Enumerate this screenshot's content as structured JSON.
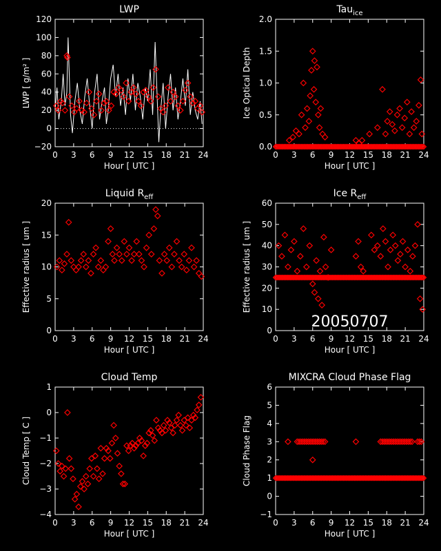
{
  "figure": {
    "background": "#000000",
    "foreground": "#ffffff",
    "marker_color": "#ff0000",
    "date_label": "20050707"
  },
  "chart_data": [
    {
      "type": "scatter",
      "title": "LWP",
      "xlabel": "Hour [ UTC ]",
      "ylabel": "LWP [ g/m² ]",
      "xlim": [
        0,
        24
      ],
      "ylim": [
        -20,
        120
      ],
      "xticks": [
        "0",
        "3",
        "6",
        "9",
        "12",
        "15",
        "18",
        "21",
        "24"
      ],
      "yticks": [
        "−20",
        "0",
        "20",
        "40",
        "60",
        "80",
        "100",
        "120"
      ],
      "zero_line": true,
      "series": [
        {
          "style": "white-line",
          "x": [
            0,
            0.3,
            0.6,
            1,
            1.3,
            1.6,
            1.9,
            2.1,
            2.5,
            2.8,
            3.2,
            3.6,
            4,
            4.4,
            4.8,
            5.2,
            5.6,
            6,
            6.4,
            6.8,
            7.2,
            7.6,
            8,
            8.3,
            8.6,
            9,
            9.4,
            9.8,
            10.2,
            10.6,
            11,
            11.4,
            11.8,
            12.2,
            12.6,
            13,
            13.4,
            13.8,
            14.2,
            14.6,
            15,
            15.4,
            15.8,
            16.2,
            16.5,
            16.8,
            17.1,
            17.5,
            17.9,
            18.3,
            18.7,
            19.1,
            19.5,
            19.9,
            20.3,
            20.7,
            21.1,
            21.5,
            21.9,
            22.3,
            22.7,
            23.1,
            23.5,
            23.8
          ],
          "y": [
            20,
            45,
            10,
            30,
            60,
            25,
            40,
            100,
            15,
            -5,
            30,
            50,
            20,
            5,
            35,
            55,
            25,
            0,
            40,
            60,
            10,
            30,
            45,
            5,
            20,
            55,
            70,
            35,
            60,
            25,
            45,
            15,
            55,
            30,
            60,
            20,
            50,
            35,
            10,
            45,
            30,
            65,
            15,
            95,
            40,
            -15,
            20,
            50,
            0,
            35,
            60,
            20,
            45,
            10,
            30,
            55,
            25,
            65,
            15,
            40,
            20,
            10,
            30,
            5
          ]
        },
        {
          "style": "red-diamond",
          "x": [
            0.2,
            0.5,
            0.9,
            1.2,
            1.6,
            1.9,
            2,
            2.3,
            2.7,
            3.1,
            3.5,
            3.9,
            4.3,
            4.7,
            5.1,
            5.5,
            5.9,
            6.3,
            6.7,
            7.1,
            7.5,
            7.9,
            8.3,
            8.7,
            9.1,
            9.5,
            9.9,
            10.3,
            10.7,
            11.1,
            11.5,
            11.9,
            12.3,
            12.7,
            13.1,
            13.5,
            13.9,
            14.3,
            14.7,
            15.1,
            15.5,
            15.9,
            16.3,
            16.7,
            17.1,
            17.5,
            17.9,
            18.3,
            18.7,
            19.1,
            19.5,
            19.9,
            20.3,
            20.7,
            21.1,
            21.5,
            21.9,
            22.3,
            22.7,
            23.1,
            23.5,
            23.8
          ],
          "y": [
            25,
            20,
            30,
            28,
            20,
            80,
            78,
            35,
            25,
            18,
            22,
            30,
            20,
            18,
            28,
            40,
            22,
            15,
            30,
            38,
            20,
            28,
            30,
            20,
            25,
            40,
            38,
            45,
            42,
            35,
            50,
            30,
            40,
            45,
            38,
            30,
            25,
            40,
            42,
            35,
            30,
            45,
            65,
            35,
            22,
            18,
            25,
            45,
            30,
            40,
            35,
            25,
            20,
            30,
            42,
            50,
            35,
            28,
            30,
            22,
            25,
            18
          ]
        }
      ]
    },
    {
      "type": "scatter",
      "title": "Tau_ice",
      "xlabel": "Hour [ UTC ]",
      "ylabel": "Ice Optical Depth",
      "xlim": [
        0,
        24
      ],
      "ylim": [
        0,
        2
      ],
      "xticks": [
        "0",
        "3",
        "6",
        "9",
        "12",
        "15",
        "18",
        "21",
        "24"
      ],
      "yticks": [
        "0.0",
        "0.5",
        "1.0",
        "1.5",
        "2.0"
      ],
      "series": [
        {
          "style": "red-diamond-baseline",
          "x": [
            0,
            24
          ],
          "y": [
            0,
            0
          ]
        },
        {
          "style": "red-diamond",
          "x": [
            2.2,
            2.8,
            3.3,
            3.8,
            4.2,
            4.5,
            4.8,
            5.1,
            5.4,
            5.6,
            5.8,
            6,
            6.2,
            6.3,
            6.5,
            6.7,
            6.9,
            7.1,
            7.3,
            7.6,
            8,
            13,
            13.5,
            14,
            15.2,
            16.5,
            17.3,
            17.8,
            18.1,
            18.5,
            18.9,
            19.3,
            19.7,
            20.1,
            20.5,
            20.9,
            21.3,
            21.7,
            22,
            22.4,
            22.8,
            23.2,
            23.5,
            23.7
          ],
          "y": [
            0.1,
            0.15,
            0.25,
            0.2,
            0.5,
            1.0,
            0.3,
            0.6,
            0.4,
            0.8,
            1.2,
            1.5,
            0.9,
            1.35,
            0.7,
            1.25,
            0.5,
            0.3,
            0.6,
            0.2,
            0.15,
            0.1,
            0.05,
            0.1,
            0.2,
            0.3,
            0.9,
            0.2,
            0.4,
            0.55,
            0.35,
            0.25,
            0.5,
            0.6,
            0.3,
            0.45,
            0.7,
            0.2,
            0.55,
            0.3,
            0.4,
            0.65,
            1.05,
            0.2
          ]
        }
      ]
    },
    {
      "type": "scatter",
      "title": "Liquid R_eff",
      "xlabel": "Hour [ UTC ]",
      "ylabel": "Effective radius [ um ]",
      "xlim": [
        0,
        24
      ],
      "ylim": [
        0,
        20
      ],
      "xticks": [
        "0",
        "3",
        "6",
        "9",
        "12",
        "15",
        "18",
        "21",
        "24"
      ],
      "yticks": [
        "0",
        "5",
        "10",
        "15",
        "20"
      ],
      "series": [
        {
          "style": "red-diamond",
          "x": [
            0.3,
            0.7,
            1.1,
            1.5,
            1.9,
            2.2,
            2.6,
            3,
            3.4,
            3.8,
            4.2,
            4.6,
            5,
            5.4,
            5.8,
            6.2,
            6.6,
            7,
            7.4,
            7.8,
            8.2,
            8.6,
            9,
            9.3,
            9.6,
            10,
            10.4,
            10.8,
            11.2,
            11.6,
            12,
            12.4,
            12.8,
            13.2,
            13.6,
            14,
            14.4,
            14.8,
            15.2,
            15.6,
            16,
            16.3,
            16.6,
            16.9,
            17.3,
            17.7,
            18.1,
            18.5,
            18.9,
            19.3,
            19.7,
            20.1,
            20.5,
            20.9,
            21.3,
            21.7,
            22.1,
            22.5,
            22.9,
            23.3,
            23.7
          ],
          "y": [
            10,
            11,
            9.5,
            10.5,
            12,
            17,
            11,
            10,
            9.5,
            10,
            11,
            12,
            10,
            11,
            9,
            12,
            13,
            10,
            11,
            9.5,
            10,
            14,
            16,
            12,
            11,
            13,
            12,
            11,
            14,
            12,
            13,
            11,
            12,
            14,
            12,
            11,
            10,
            13,
            15,
            12,
            16,
            19,
            18,
            11,
            9,
            12,
            11,
            13,
            10,
            12,
            14,
            11,
            10,
            12,
            9.5,
            11,
            13,
            10,
            11,
            9,
            8.5
          ]
        }
      ]
    },
    {
      "type": "scatter",
      "title": "Ice R_eff",
      "xlabel": "Hour [ UTC ]",
      "ylabel": "Effective radius [ um ]",
      "xlim": [
        0,
        24
      ],
      "ylim": [
        0,
        60
      ],
      "xticks": [
        "0",
        "3",
        "6",
        "9",
        "12",
        "15",
        "18",
        "21",
        "24"
      ],
      "yticks": [
        "0",
        "10",
        "20",
        "30",
        "40",
        "50",
        "60"
      ],
      "annotation": "20050707",
      "series": [
        {
          "style": "red-diamond-baseline",
          "x": [
            0,
            24
          ],
          "y": [
            25,
            25
          ]
        },
        {
          "style": "red-diamond",
          "x": [
            0.5,
            1,
            1.5,
            2,
            2.5,
            3,
            3.5,
            4,
            4.5,
            5,
            5.5,
            6,
            6.3,
            6.6,
            6.9,
            7.2,
            7.5,
            7.8,
            8.1,
            8.5,
            9,
            13,
            13.4,
            13.8,
            14.2,
            15.5,
            16,
            16.5,
            17,
            17.4,
            17.8,
            18.2,
            18.6,
            19,
            19.4,
            19.8,
            20.2,
            20.6,
            21,
            21.4,
            21.8,
            22.2,
            22.6,
            23,
            23.4,
            23.8
          ],
          "y": [
            40,
            35,
            45,
            30,
            38,
            42,
            28,
            35,
            48,
            30,
            40,
            22,
            18,
            33,
            15,
            28,
            12,
            44,
            30,
            25,
            38,
            35,
            42,
            30,
            28,
            45,
            38,
            40,
            35,
            48,
            42,
            30,
            38,
            45,
            40,
            33,
            36,
            42,
            30,
            38,
            28,
            35,
            40,
            50,
            15,
            10
          ]
        }
      ]
    },
    {
      "type": "scatter",
      "title": "Cloud Temp",
      "xlabel": "Hour [ UTC ]",
      "ylabel": "Cloud Temp [ C ]",
      "xlim": [
        0,
        24
      ],
      "ylim": [
        -4,
        1
      ],
      "xticks": [
        "0",
        "3",
        "6",
        "9",
        "12",
        "15",
        "18",
        "21",
        "24"
      ],
      "yticks": [
        "−4",
        "−3",
        "−2",
        "−1",
        "0",
        "1"
      ],
      "series": [
        {
          "style": "red-diamond",
          "x": [
            0.2,
            0.5,
            0.8,
            1.1,
            1.4,
            1.7,
            2,
            2.3,
            2.6,
            2.9,
            3.2,
            3.5,
            3.8,
            4.1,
            4.4,
            4.7,
            5,
            5.3,
            5.6,
            5.9,
            6.2,
            6.5,
            6.8,
            7.1,
            7.4,
            7.7,
            8,
            8.3,
            8.6,
            8.9,
            9.2,
            9.5,
            9.8,
            10.1,
            10.4,
            10.7,
            11,
            11.3,
            11.6,
            11.9,
            12.2,
            12.5,
            12.8,
            13.1,
            13.4,
            13.7,
            14,
            14.3,
            14.6,
            14.9,
            15.2,
            15.5,
            15.8,
            16.1,
            16.4,
            16.7,
            17,
            17.3,
            17.6,
            17.9,
            18.2,
            18.5,
            18.8,
            19.1,
            19.4,
            19.7,
            20,
            20.3,
            20.6,
            20.9,
            21.2,
            21.5,
            21.8,
            22.1,
            22.4,
            22.7,
            23,
            23.3,
            23.6
          ],
          "y": [
            -1.5,
            -2,
            -2.3,
            -2.1,
            -2.5,
            -2.2,
            0,
            -1.8,
            -2.2,
            -2.6,
            -3.4,
            -3.2,
            -3.7,
            -2.9,
            -2.7,
            -3.0,
            -2.5,
            -2.8,
            -2.2,
            -1.8,
            -2.5,
            -1.7,
            -2.2,
            -2.6,
            -1.4,
            -2.4,
            -1.8,
            -1.4,
            -1.5,
            -1.8,
            -1.2,
            -0.5,
            -1.0,
            -1.6,
            -2.1,
            -2.4,
            -2.8,
            -2.8,
            -1.3,
            -1.5,
            -1.3,
            -1.2,
            -1.4,
            -1.3,
            -1.2,
            -1.0,
            -1.1,
            -1.7,
            -1.3,
            -1.2,
            -0.8,
            -0.7,
            -0.9,
            -1.1,
            -0.3,
            -0.6,
            -0.7,
            -0.8,
            -0.5,
            -0.7,
            -0.3,
            -0.4,
            -0.6,
            -0.8,
            -0.5,
            -0.3,
            -0.1,
            -0.5,
            -0.7,
            -0.3,
            -0.5,
            -0.2,
            -0.6,
            -0.3,
            -0.1,
            -0.2,
            0.1,
            0.3,
            0.6
          ]
        }
      ]
    },
    {
      "type": "scatter",
      "title": "MIXCRA Cloud Phase Flag",
      "xlabel": "Hour [ UTC ]",
      "ylabel": "Cloud Phase Flag",
      "xlim": [
        0,
        24
      ],
      "ylim": [
        -1,
        6
      ],
      "xticks": [
        "0",
        "3",
        "6",
        "9",
        "12",
        "15",
        "18",
        "21",
        "24"
      ],
      "yticks": [
        "−1",
        "0",
        "1",
        "2",
        "3",
        "4",
        "5",
        "6"
      ],
      "series": [
        {
          "style": "red-diamond-baseline",
          "x": [
            0,
            24
          ],
          "y": [
            1,
            1
          ]
        },
        {
          "style": "red-diamond",
          "x": [
            2,
            3.5,
            3.8,
            4.1,
            4.4,
            4.7,
            5,
            5.3,
            5.6,
            5.9,
            6,
            6.2,
            6.5,
            6.8,
            7.1,
            7.4,
            7.7,
            8,
            13,
            17,
            17.3,
            17.6,
            17.9,
            18.2,
            18.5,
            18.8,
            19.1,
            19.4,
            19.7,
            20,
            20.3,
            20.6,
            20.9,
            21.2,
            21.5,
            21.8,
            22.1,
            23,
            23.3,
            23.6
          ],
          "y": [
            3,
            3,
            3,
            3,
            3,
            3,
            3,
            3,
            3,
            3,
            2,
            3,
            3,
            3,
            3,
            3,
            3,
            3,
            3,
            3,
            3,
            3,
            3,
            3,
            3,
            3,
            3,
            3,
            3,
            3,
            3,
            3,
            3,
            3,
            3,
            3,
            3,
            3,
            3,
            3
          ]
        }
      ]
    }
  ]
}
